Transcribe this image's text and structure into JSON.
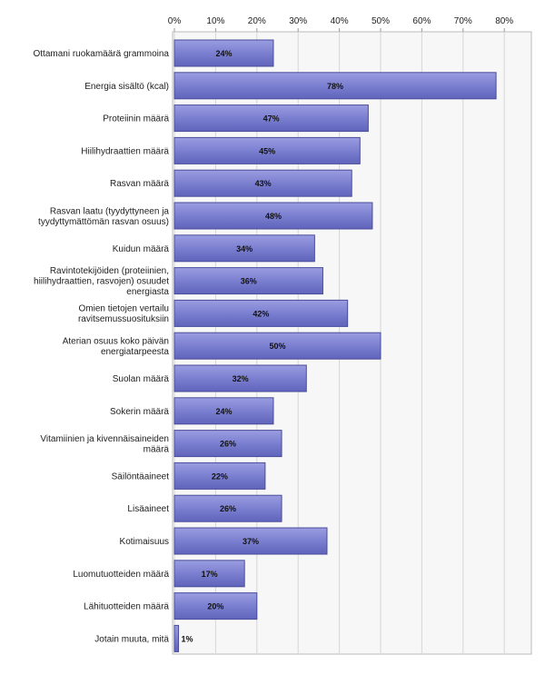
{
  "chart_data": {
    "type": "bar",
    "orientation": "horizontal",
    "categories": [
      "Ottamani ruokamäärä grammoina",
      "Energia sisältö (kcal)",
      "Proteiinin määrä",
      "Hiilihydraattien määrä",
      "Rasvan määrä",
      "Rasvan laatu (tyydyttyneen ja\ntyydyttymättömän rasvan osuus)",
      "Kuidun määrä",
      "Ravintotekijöiden (proteiinien,\nhiilihydraattien, rasvojen) osuudet\nenergiasta",
      "Omien tietojen vertailu\nravitsemussuosituksiin",
      "Aterian osuus koko päivän\nenergiatarpeesta",
      "Suolan määrä",
      "Sokerin määrä",
      "Vitamiinien ja kivennäisaineiden\nmäärä",
      "Säilöntäaineet",
      "Lisäaineet",
      "Kotimaisuus",
      "Luomutuotteiden määrä",
      "Lähituotteiden määrä",
      "Jotain muuta, mitä"
    ],
    "values": [
      24,
      78,
      47,
      45,
      43,
      48,
      34,
      36,
      42,
      50,
      32,
      24,
      26,
      22,
      26,
      37,
      17,
      20,
      1
    ],
    "value_labels": [
      "24%",
      "78%",
      "47%",
      "45%",
      "43%",
      "48%",
      "34%",
      "36%",
      "42%",
      "50%",
      "32%",
      "24%",
      "26%",
      "22%",
      "26%",
      "37%",
      "17%",
      "20%",
      "1%"
    ],
    "xticks": [
      "0%",
      "10%",
      "20%",
      "30%",
      "40%",
      "50%",
      "60%",
      "70%",
      "80%"
    ],
    "xlim": [
      0,
      86
    ],
    "grid": true,
    "colors": {
      "bar": "#7b7fd0",
      "bar_edge": "#4a4d9a",
      "grid": "#d6d6d6",
      "plot_bg": "#f7f7f7",
      "axis": "#999999"
    }
  }
}
